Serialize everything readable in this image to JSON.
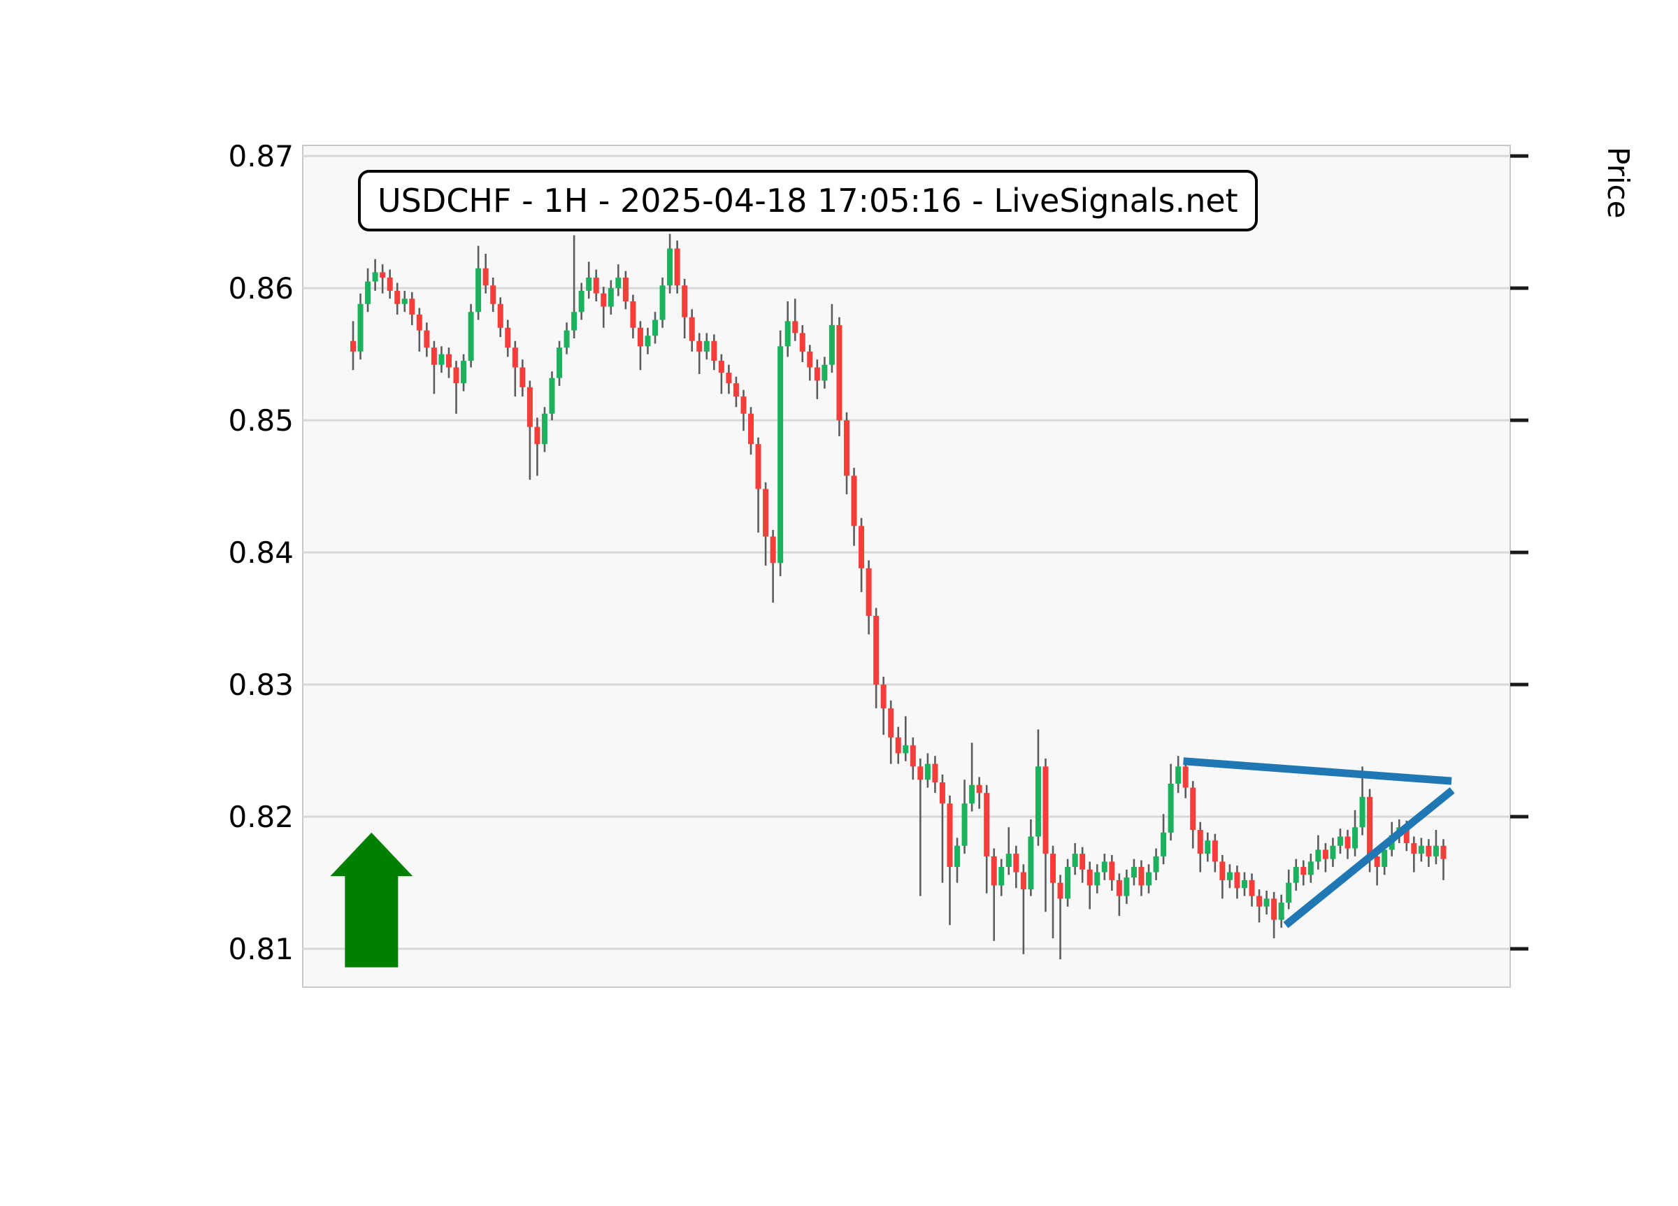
{
  "figure": {
    "background": "#ffffff",
    "plot_background": "#f8f8f8",
    "grid_color": "#d8d8d8",
    "spine_color": "#c9c9c9",
    "tick_color": "#1a1a1a",
    "text_color": "#000000"
  },
  "title_box": {
    "text": "USDCHF - 1H - 2025-04-18 17:05:16 - LiveSignals.net"
  },
  "y_axis": {
    "label": "Price",
    "ticks": [
      "0.87",
      "0.86",
      "0.85",
      "0.84",
      "0.83",
      "0.82",
      "0.81"
    ],
    "tick_values": [
      0.87,
      0.86,
      0.85,
      0.84,
      0.83,
      0.82,
      0.81
    ]
  },
  "chart_data": {
    "type": "candlestick",
    "symbol": "USDCHF",
    "timeframe": "1H",
    "timestamp": "2025-04-18 17:05:16",
    "source": "LiveSignals.net",
    "title": "USDCHF - 1H - 2025-04-18 17:05:16 - LiveSignals.net",
    "ylabel": "Price",
    "ylim": [
      0.8071,
      0.8708
    ],
    "grid": true,
    "up_color": "#1cb15c",
    "down_color": "#f53d39",
    "wick_color": "#5c5c5c",
    "trendline_color": "#1f77b4",
    "arrow_color": "#008000",
    "candles_ohlc": [
      [
        0.856,
        0.8575,
        0.8538,
        0.8552
      ],
      [
        0.8552,
        0.8596,
        0.8546,
        0.8588
      ],
      [
        0.8588,
        0.8615,
        0.8582,
        0.8605
      ],
      [
        0.8605,
        0.8622,
        0.8598,
        0.8612
      ],
      [
        0.8612,
        0.8618,
        0.8596,
        0.8608
      ],
      [
        0.8608,
        0.8614,
        0.8592,
        0.8598
      ],
      [
        0.8598,
        0.8604,
        0.858,
        0.8588
      ],
      [
        0.8588,
        0.8598,
        0.8582,
        0.8592
      ],
      [
        0.8592,
        0.8597,
        0.8572,
        0.858
      ],
      [
        0.858,
        0.8585,
        0.8552,
        0.8568
      ],
      [
        0.8568,
        0.8574,
        0.8548,
        0.8555
      ],
      [
        0.8555,
        0.856,
        0.852,
        0.8542
      ],
      [
        0.8542,
        0.8556,
        0.8536,
        0.855
      ],
      [
        0.855,
        0.8555,
        0.8532,
        0.854
      ],
      [
        0.854,
        0.8545,
        0.8505,
        0.8528
      ],
      [
        0.8528,
        0.855,
        0.8522,
        0.8545
      ],
      [
        0.8545,
        0.8588,
        0.854,
        0.8582
      ],
      [
        0.8582,
        0.8632,
        0.8576,
        0.8615
      ],
      [
        0.8615,
        0.8626,
        0.8596,
        0.8602
      ],
      [
        0.8602,
        0.8608,
        0.8582,
        0.8588
      ],
      [
        0.8588,
        0.8593,
        0.8563,
        0.857
      ],
      [
        0.857,
        0.8576,
        0.8548,
        0.8555
      ],
      [
        0.8555,
        0.856,
        0.8518,
        0.854
      ],
      [
        0.854,
        0.8546,
        0.8518,
        0.8525
      ],
      [
        0.8525,
        0.853,
        0.8455,
        0.8495
      ],
      [
        0.8495,
        0.8502,
        0.8458,
        0.8482
      ],
      [
        0.8482,
        0.851,
        0.8476,
        0.8505
      ],
      [
        0.8505,
        0.8537,
        0.85,
        0.8532
      ],
      [
        0.8532,
        0.856,
        0.8526,
        0.8555
      ],
      [
        0.8555,
        0.8574,
        0.855,
        0.8568
      ],
      [
        0.8568,
        0.864,
        0.8562,
        0.8582
      ],
      [
        0.8582,
        0.8604,
        0.8576,
        0.8598
      ],
      [
        0.8598,
        0.862,
        0.8592,
        0.8608
      ],
      [
        0.8608,
        0.8614,
        0.859,
        0.8596
      ],
      [
        0.8596,
        0.8601,
        0.857,
        0.8586
      ],
      [
        0.8586,
        0.8606,
        0.858,
        0.86
      ],
      [
        0.86,
        0.8618,
        0.8594,
        0.8608
      ],
      [
        0.8608,
        0.8613,
        0.8584,
        0.859
      ],
      [
        0.859,
        0.8595,
        0.8562,
        0.857
      ],
      [
        0.857,
        0.8575,
        0.8538,
        0.8556
      ],
      [
        0.8556,
        0.857,
        0.855,
        0.8564
      ],
      [
        0.8564,
        0.8582,
        0.8558,
        0.8576
      ],
      [
        0.8576,
        0.8608,
        0.857,
        0.8602
      ],
      [
        0.8602,
        0.8641,
        0.8596,
        0.863
      ],
      [
        0.863,
        0.8636,
        0.8596,
        0.8602
      ],
      [
        0.8602,
        0.8607,
        0.8562,
        0.8578
      ],
      [
        0.8578,
        0.8584,
        0.8552,
        0.856
      ],
      [
        0.856,
        0.8566,
        0.8535,
        0.8552
      ],
      [
        0.8552,
        0.8566,
        0.8546,
        0.856
      ],
      [
        0.856,
        0.8565,
        0.8538,
        0.8545
      ],
      [
        0.8545,
        0.855,
        0.852,
        0.8536
      ],
      [
        0.8536,
        0.8542,
        0.852,
        0.8528
      ],
      [
        0.8528,
        0.8533,
        0.851,
        0.8518
      ],
      [
        0.8518,
        0.8523,
        0.8492,
        0.8505
      ],
      [
        0.8505,
        0.851,
        0.8474,
        0.8482
      ],
      [
        0.8482,
        0.8487,
        0.8415,
        0.8448
      ],
      [
        0.8448,
        0.8453,
        0.839,
        0.8412
      ],
      [
        0.8412,
        0.8417,
        0.8362,
        0.8392
      ],
      [
        0.8392,
        0.8568,
        0.8382,
        0.8556
      ],
      [
        0.8556,
        0.859,
        0.8548,
        0.8575
      ],
      [
        0.8575,
        0.8592,
        0.856,
        0.8566
      ],
      [
        0.8566,
        0.8572,
        0.8544,
        0.8552
      ],
      [
        0.8552,
        0.8557,
        0.853,
        0.854
      ],
      [
        0.854,
        0.8546,
        0.8516,
        0.853
      ],
      [
        0.853,
        0.8548,
        0.8524,
        0.8542
      ],
      [
        0.8542,
        0.8588,
        0.8536,
        0.8572
      ],
      [
        0.8572,
        0.8578,
        0.8488,
        0.85
      ],
      [
        0.85,
        0.8506,
        0.8444,
        0.8458
      ],
      [
        0.8458,
        0.8464,
        0.8405,
        0.842
      ],
      [
        0.842,
        0.8426,
        0.837,
        0.8388
      ],
      [
        0.8388,
        0.8394,
        0.8338,
        0.8352
      ],
      [
        0.8352,
        0.8358,
        0.8282,
        0.83
      ],
      [
        0.83,
        0.8306,
        0.8262,
        0.8282
      ],
      [
        0.8282,
        0.8288,
        0.824,
        0.826
      ],
      [
        0.826,
        0.8268,
        0.824,
        0.8248
      ],
      [
        0.8248,
        0.8276,
        0.8242,
        0.8254
      ],
      [
        0.8254,
        0.826,
        0.8228,
        0.8238
      ],
      [
        0.8238,
        0.8244,
        0.814,
        0.8228
      ],
      [
        0.8228,
        0.8248,
        0.8222,
        0.824
      ],
      [
        0.824,
        0.8246,
        0.8218,
        0.8226
      ],
      [
        0.8226,
        0.8232,
        0.815,
        0.821
      ],
      [
        0.821,
        0.8216,
        0.8118,
        0.8162
      ],
      [
        0.8162,
        0.8184,
        0.815,
        0.8178
      ],
      [
        0.8178,
        0.8228,
        0.8172,
        0.821
      ],
      [
        0.821,
        0.8256,
        0.8204,
        0.8224
      ],
      [
        0.8224,
        0.823,
        0.8206,
        0.8218
      ],
      [
        0.8218,
        0.8224,
        0.8142,
        0.817
      ],
      [
        0.817,
        0.8176,
        0.8106,
        0.8148
      ],
      [
        0.8148,
        0.8168,
        0.814,
        0.8162
      ],
      [
        0.8162,
        0.8192,
        0.8156,
        0.8172
      ],
      [
        0.8172,
        0.8178,
        0.8146,
        0.8158
      ],
      [
        0.8158,
        0.8164,
        0.8096,
        0.8145
      ],
      [
        0.8145,
        0.8198,
        0.814,
        0.8185
      ],
      [
        0.8185,
        0.8266,
        0.8178,
        0.8238
      ],
      [
        0.8238,
        0.8244,
        0.8128,
        0.8172
      ],
      [
        0.8172,
        0.8178,
        0.8108,
        0.815
      ],
      [
        0.815,
        0.8156,
        0.8092,
        0.8138
      ],
      [
        0.8138,
        0.8168,
        0.8132,
        0.8162
      ],
      [
        0.8162,
        0.818,
        0.8156,
        0.8172
      ],
      [
        0.8172,
        0.8177,
        0.815,
        0.816
      ],
      [
        0.816,
        0.8166,
        0.813,
        0.8148
      ],
      [
        0.8148,
        0.8164,
        0.8142,
        0.8158
      ],
      [
        0.8158,
        0.8172,
        0.8152,
        0.8166
      ],
      [
        0.8166,
        0.8171,
        0.8144,
        0.8152
      ],
      [
        0.8152,
        0.8157,
        0.8125,
        0.814
      ],
      [
        0.814,
        0.816,
        0.8134,
        0.8154
      ],
      [
        0.8154,
        0.8168,
        0.8148,
        0.8162
      ],
      [
        0.8162,
        0.8167,
        0.814,
        0.8148
      ],
      [
        0.8148,
        0.8164,
        0.8142,
        0.8158
      ],
      [
        0.8158,
        0.8176,
        0.8152,
        0.817
      ],
      [
        0.817,
        0.8202,
        0.8164,
        0.8188
      ],
      [
        0.8188,
        0.824,
        0.8182,
        0.8225
      ],
      [
        0.8225,
        0.8246,
        0.8218,
        0.8238
      ],
      [
        0.8238,
        0.8243,
        0.8214,
        0.8222
      ],
      [
        0.8222,
        0.8227,
        0.8176,
        0.819
      ],
      [
        0.819,
        0.8196,
        0.8158,
        0.8172
      ],
      [
        0.8172,
        0.8188,
        0.8166,
        0.8182
      ],
      [
        0.8182,
        0.8187,
        0.8158,
        0.8166
      ],
      [
        0.8166,
        0.8171,
        0.8138,
        0.8152
      ],
      [
        0.8152,
        0.8164,
        0.8146,
        0.8158
      ],
      [
        0.8158,
        0.8163,
        0.8138,
        0.8146
      ],
      [
        0.8146,
        0.8158,
        0.814,
        0.8152
      ],
      [
        0.8152,
        0.8157,
        0.8132,
        0.814
      ],
      [
        0.814,
        0.8145,
        0.812,
        0.8132
      ],
      [
        0.8132,
        0.8144,
        0.8126,
        0.8138
      ],
      [
        0.8138,
        0.8143,
        0.8108,
        0.8122
      ],
      [
        0.8122,
        0.8141,
        0.8116,
        0.8135
      ],
      [
        0.8135,
        0.816,
        0.813,
        0.815
      ],
      [
        0.815,
        0.8168,
        0.8144,
        0.8162
      ],
      [
        0.8162,
        0.8167,
        0.8148,
        0.8156
      ],
      [
        0.8156,
        0.8172,
        0.815,
        0.8166
      ],
      [
        0.8166,
        0.8186,
        0.816,
        0.8175
      ],
      [
        0.8175,
        0.818,
        0.8158,
        0.8168
      ],
      [
        0.8168,
        0.8184,
        0.8162,
        0.8178
      ],
      [
        0.8178,
        0.8191,
        0.8172,
        0.8185
      ],
      [
        0.8185,
        0.819,
        0.8168,
        0.8176
      ],
      [
        0.8176,
        0.8205,
        0.817,
        0.8192
      ],
      [
        0.8192,
        0.8238,
        0.8186,
        0.8215
      ],
      [
        0.8215,
        0.8221,
        0.8158,
        0.817
      ],
      [
        0.817,
        0.8176,
        0.8148,
        0.8162
      ],
      [
        0.8162,
        0.8181,
        0.8156,
        0.8175
      ],
      [
        0.8175,
        0.8196,
        0.817,
        0.8186
      ],
      [
        0.8186,
        0.8198,
        0.818,
        0.8192
      ],
      [
        0.8192,
        0.8197,
        0.8174,
        0.818
      ],
      [
        0.818,
        0.8185,
        0.8158,
        0.8172
      ],
      [
        0.8172,
        0.8184,
        0.8166,
        0.8178
      ],
      [
        0.8178,
        0.8183,
        0.8162,
        0.817
      ],
      [
        0.817,
        0.819,
        0.8164,
        0.8178
      ],
      [
        0.8178,
        0.8183,
        0.8152,
        0.8168
      ]
    ],
    "trendlines": [
      {
        "x1_index": 112.7,
        "price1": 0.8242,
        "x2_index": 149.1,
        "price2": 0.8227,
        "width": 11
      },
      {
        "x1_index": 126.6,
        "price1": 0.8118,
        "x2_index": 149.2,
        "price2": 0.822,
        "width": 11
      }
    ],
    "annotations": [
      {
        "type": "up-arrow",
        "center_index": 2.5,
        "tip_price": 0.8188,
        "head_base_price": 0.8155,
        "base_price": 0.8086
      }
    ]
  }
}
